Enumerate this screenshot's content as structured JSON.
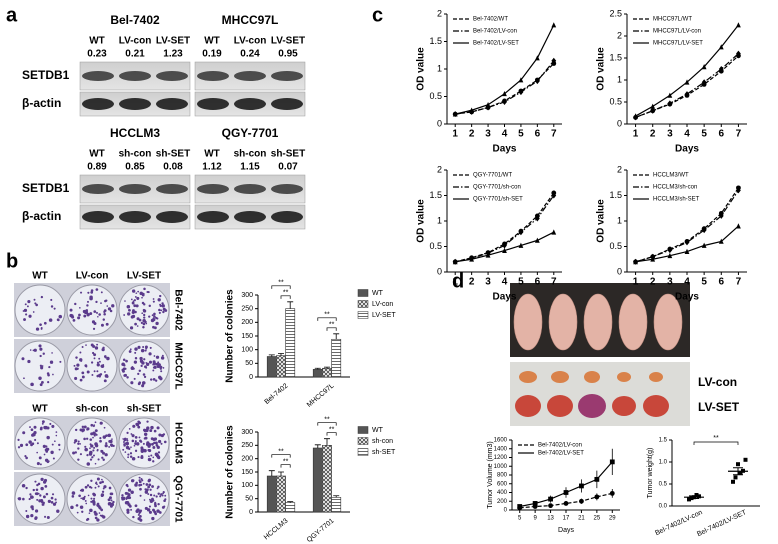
{
  "panel_labels": [
    "a",
    "b",
    "c",
    "d"
  ],
  "blot_rows": [
    "SETDB1",
    "β-actin"
  ],
  "blots": [
    {
      "title": "Bel-7402",
      "lanes": [
        "WT",
        "LV-con",
        "LV-SET"
      ],
      "ratios": [
        0.23,
        0.21,
        1.23
      ]
    },
    {
      "title": "MHCC97L",
      "lanes": [
        "WT",
        "LV-con",
        "LV-SET"
      ],
      "ratios": [
        0.19,
        0.24,
        0.95
      ]
    },
    {
      "title": "HCCLM3",
      "lanes": [
        "WT",
        "sh-con",
        "sh-SET"
      ],
      "ratios": [
        0.89,
        0.85,
        0.08
      ]
    },
    {
      "title": "QGY-7701",
      "lanes": [
        "WT",
        "sh-con",
        "sh-SET"
      ],
      "ratios": [
        1.12,
        1.15,
        0.07
      ]
    }
  ],
  "colony_assays": [
    {
      "columns": [
        "WT",
        "LV-con",
        "LV-SET"
      ],
      "rows": [
        "Bel-7402",
        "MHCC97L"
      ]
    },
    {
      "columns": [
        "WT",
        "sh-con",
        "sh-SET"
      ],
      "rows": [
        "HCCLM3",
        "QGY-7701"
      ]
    }
  ],
  "tumor_labels": [
    "LV-con",
    "LV-SET"
  ],
  "chart_data": [
    {
      "type": "bar",
      "ylabel": "Number of colonies",
      "categories": [
        "Bel-7402",
        "MHCC97L"
      ],
      "series": [
        {
          "name": "WT",
          "color": "#555555",
          "pattern": "solid",
          "values": [
            75,
            28
          ],
          "errors": [
            6,
            4
          ]
        },
        {
          "name": "LV-con",
          "color": "#555555",
          "pattern": "crosshatch",
          "values": [
            78,
            32
          ],
          "errors": [
            8,
            4
          ]
        },
        {
          "name": "LV-SET",
          "color": "#555555",
          "pattern": "hlines",
          "values": [
            250,
            138
          ],
          "errors": [
            25,
            20
          ]
        }
      ],
      "annotations": [
        "**",
        "**",
        "**",
        "**"
      ],
      "ylim": [
        0,
        300
      ],
      "yticks": [
        0,
        50,
        100,
        150,
        200,
        250,
        300
      ]
    },
    {
      "type": "bar",
      "ylabel": "Number of colonies",
      "categories": [
        "HCCLM3",
        "QGY-7701"
      ],
      "series": [
        {
          "name": "WT",
          "color": "#555555",
          "pattern": "solid",
          "values": [
            135,
            240
          ],
          "errors": [
            20,
            12
          ]
        },
        {
          "name": "sh-con",
          "color": "#555555",
          "pattern": "crosshatch",
          "values": [
            135,
            250
          ],
          "errors": [
            15,
            25
          ]
        },
        {
          "name": "sh-SET",
          "color": "#555555",
          "pattern": "hlines",
          "values": [
            35,
            55
          ],
          "errors": [
            4,
            6
          ]
        }
      ],
      "annotations": [
        "**",
        "**",
        "**",
        "**"
      ],
      "ylim": [
        0,
        300
      ],
      "yticks": [
        0,
        50,
        100,
        150,
        200,
        250,
        300
      ]
    },
    {
      "type": "line",
      "xlabel": "Days",
      "ylabel": "OD value",
      "x": [
        1,
        2,
        3,
        4,
        5,
        6,
        7
      ],
      "series": [
        {
          "name": "Bel-7402/WT",
          "color": "#000000",
          "style": "dashed",
          "marker": "circle",
          "values": [
            0.18,
            0.22,
            0.3,
            0.42,
            0.6,
            0.8,
            1.1
          ]
        },
        {
          "name": "Bel-7402/LV-con",
          "color": "#000000",
          "style": "dash-dot",
          "marker": "diamond",
          "values": [
            0.18,
            0.22,
            0.3,
            0.4,
            0.58,
            0.78,
            1.15
          ]
        },
        {
          "name": "Bel-7402/LV-SET",
          "color": "#000000",
          "style": "solid",
          "marker": "triangle",
          "values": [
            0.18,
            0.25,
            0.35,
            0.55,
            0.8,
            1.2,
            1.8
          ]
        }
      ],
      "xlim": [
        0.5,
        7.5
      ],
      "xticks": [
        1,
        2,
        3,
        4,
        5,
        6,
        7
      ],
      "ylim": [
        0,
        2
      ],
      "yticks": [
        0,
        0.5,
        1,
        1.5,
        2
      ]
    },
    {
      "type": "line",
      "xlabel": "Days",
      "ylabel": "OD value",
      "x": [
        1,
        2,
        3,
        4,
        5,
        6,
        7
      ],
      "series": [
        {
          "name": "MHCC97L/WT",
          "color": "#000000",
          "style": "dashed",
          "marker": "circle",
          "values": [
            0.15,
            0.3,
            0.45,
            0.65,
            0.9,
            1.2,
            1.55
          ]
        },
        {
          "name": "MHCC97L/LV-con",
          "color": "#000000",
          "style": "dash-dot",
          "marker": "diamond",
          "values": [
            0.15,
            0.3,
            0.47,
            0.68,
            0.95,
            1.25,
            1.6
          ]
        },
        {
          "name": "MHCC97L/LV-SET",
          "color": "#000000",
          "style": "solid",
          "marker": "triangle",
          "values": [
            0.18,
            0.4,
            0.65,
            0.95,
            1.3,
            1.75,
            2.25
          ]
        }
      ],
      "xlim": [
        0.5,
        7.5
      ],
      "xticks": [
        1,
        2,
        3,
        4,
        5,
        6,
        7
      ],
      "ylim": [
        0,
        2.5
      ],
      "yticks": [
        0,
        0.5,
        1,
        1.5,
        2,
        2.5
      ]
    },
    {
      "type": "line",
      "xlabel": "Days",
      "ylabel": "OD value",
      "x": [
        1,
        2,
        3,
        4,
        5,
        6,
        7
      ],
      "series": [
        {
          "name": "QGY-7701/WT",
          "color": "#000000",
          "style": "dashed",
          "marker": "circle",
          "values": [
            0.2,
            0.28,
            0.38,
            0.55,
            0.8,
            1.1,
            1.55
          ]
        },
        {
          "name": "QGY-7701/sh-con",
          "color": "#000000",
          "style": "dash-dot",
          "marker": "diamond",
          "values": [
            0.2,
            0.27,
            0.37,
            0.52,
            0.78,
            1.05,
            1.5
          ]
        },
        {
          "name": "QGY-7701/sh-SET",
          "color": "#000000",
          "style": "solid",
          "marker": "triangle",
          "values": [
            0.2,
            0.25,
            0.33,
            0.42,
            0.52,
            0.62,
            0.78
          ]
        }
      ],
      "xlim": [
        0.5,
        7.5
      ],
      "xticks": [
        1,
        2,
        3,
        4,
        5,
        6,
        7
      ],
      "ylim": [
        0,
        2
      ],
      "yticks": [
        0,
        0.5,
        1,
        1.5,
        2
      ]
    },
    {
      "type": "line",
      "xlabel": "Days",
      "ylabel": "OD value",
      "x": [
        1,
        2,
        3,
        4,
        5,
        6,
        7
      ],
      "series": [
        {
          "name": "HCCLM3/WT",
          "color": "#000000",
          "style": "dashed",
          "marker": "circle",
          "values": [
            0.2,
            0.3,
            0.45,
            0.6,
            0.85,
            1.15,
            1.65
          ]
        },
        {
          "name": "HCCLM3/sh-con",
          "color": "#000000",
          "style": "dash-dot",
          "marker": "diamond",
          "values": [
            0.2,
            0.3,
            0.43,
            0.58,
            0.82,
            1.1,
            1.6
          ]
        },
        {
          "name": "HCCLM3/sh-SET",
          "color": "#000000",
          "style": "solid",
          "marker": "triangle",
          "values": [
            0.2,
            0.25,
            0.32,
            0.4,
            0.52,
            0.6,
            0.9
          ]
        }
      ],
      "xlim": [
        0.5,
        7.5
      ],
      "xticks": [
        1,
        2,
        3,
        4,
        5,
        6,
        7
      ],
      "ylim": [
        0,
        2
      ],
      "yticks": [
        0,
        0.5,
        1,
        1.5,
        2
      ]
    },
    {
      "type": "line",
      "xlabel": "Days",
      "ylabel": "Tumor Volume (mm3)",
      "x": [
        5,
        9,
        13,
        17,
        21,
        25,
        29
      ],
      "series": [
        {
          "name": "Bel-7402/LV-con",
          "color": "#000000",
          "style": "dashed",
          "marker": "circle",
          "values": [
            50,
            80,
            100,
            150,
            200,
            300,
            380
          ],
          "errors": [
            10,
            20,
            30,
            40,
            60,
            80,
            100
          ]
        },
        {
          "name": "Bel-7402/LV-SET",
          "color": "#000000",
          "style": "solid",
          "marker": "square",
          "values": [
            80,
            150,
            250,
            400,
            550,
            700,
            1100
          ],
          "errors": [
            20,
            50,
            80,
            120,
            150,
            200,
            300
          ]
        }
      ],
      "xlim": [
        3,
        31
      ],
      "xticks": [
        5,
        9,
        13,
        17,
        21,
        25,
        29
      ],
      "ylim": [
        0,
        1600
      ],
      "yticks": [
        0,
        200,
        400,
        600,
        800,
        1000,
        1200,
        1400,
        1600
      ]
    },
    {
      "type": "scatter",
      "ylabel": "Tumor weight(g)",
      "categories": [
        "Bel-7402/LV-con",
        "Bel-7402/LV-SET"
      ],
      "points": [
        [
          0.15,
          0.2,
          0.22,
          0.18,
          0.25
        ],
        [
          0.55,
          0.95,
          0.8,
          0.65,
          0.75,
          1.05
        ]
      ],
      "means": [
        0.2,
        0.79
      ],
      "errors": [
        0.03,
        0.08
      ],
      "color": "#000000",
      "annotations": [
        "**"
      ],
      "ylim": [
        0,
        1.5
      ],
      "yticks": [
        {
          "value": 0,
          "label": "0.0"
        },
        {
          "value": 0.5,
          "label": "0.5"
        },
        {
          "value": 1,
          "label": "1.0"
        },
        {
          "value": 1.5,
          "label": "1.5"
        }
      ]
    }
  ]
}
